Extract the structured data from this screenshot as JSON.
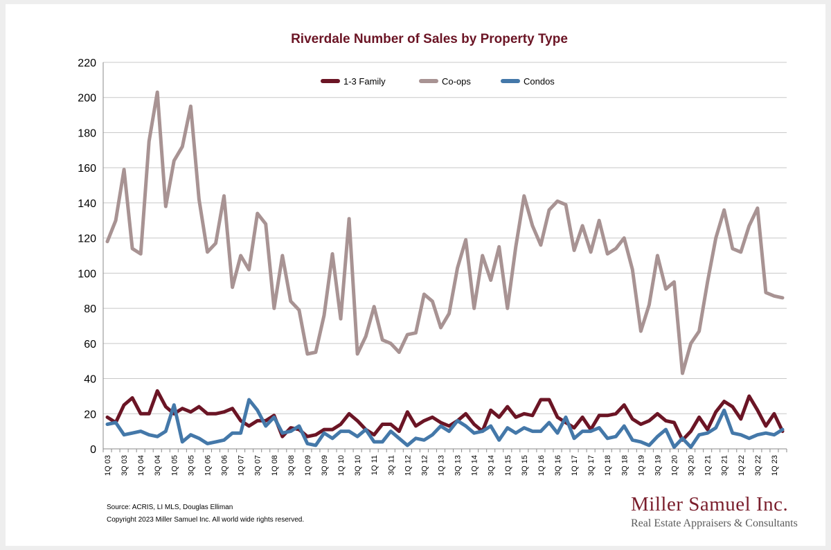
{
  "chart_data": {
    "type": "line",
    "title": "Riverdale Number of Sales by Property Type",
    "xlabel": "",
    "ylabel": "",
    "ylim": [
      0,
      220
    ],
    "yticks": [
      0,
      20,
      40,
      60,
      80,
      100,
      120,
      140,
      160,
      180,
      200,
      220
    ],
    "grid": true,
    "legend_position": "top-center",
    "categories": [
      "1Q 03",
      "2Q 03",
      "3Q 03",
      "4Q 03",
      "1Q 04",
      "2Q 04",
      "3Q 04",
      "4Q 04",
      "1Q 05",
      "2Q 05",
      "3Q 05",
      "4Q 05",
      "1Q 06",
      "2Q 06",
      "3Q 06",
      "4Q 06",
      "1Q 07",
      "2Q 07",
      "3Q 07",
      "4Q 07",
      "1Q 08",
      "2Q 08",
      "3Q 08",
      "4Q 08",
      "1Q 09",
      "2Q 09",
      "3Q 09",
      "4Q 09",
      "1Q 10",
      "2Q 10",
      "3Q 10",
      "4Q 10",
      "1Q 11",
      "2Q 11",
      "3Q 11",
      "4Q 11",
      "1Q 12",
      "2Q 12",
      "3Q 12",
      "4Q 12",
      "1Q 13",
      "2Q 13",
      "3Q 13",
      "4Q 13",
      "1Q 14",
      "2Q 14",
      "3Q 14",
      "4Q 14",
      "1Q 15",
      "2Q 15",
      "3Q 15",
      "4Q 15",
      "1Q 16",
      "2Q 16",
      "3Q 16",
      "4Q 16",
      "1Q 17",
      "2Q 17",
      "3Q 17",
      "4Q 17",
      "1Q 18",
      "2Q 18",
      "3Q 18",
      "4Q 18",
      "1Q 19",
      "2Q 19",
      "3Q 19",
      "4Q 19",
      "1Q 20",
      "2Q 20",
      "3Q 20",
      "4Q 20",
      "1Q 21",
      "2Q 21",
      "3Q 21",
      "4Q 21",
      "1Q 22",
      "2Q 22",
      "3Q 22",
      "4Q 22",
      "1Q 23",
      "2Q 23"
    ],
    "tick_labels": [
      "1Q 03",
      "3Q 03",
      "1Q 04",
      "3Q 04",
      "1Q 05",
      "3Q 05",
      "1Q 06",
      "3Q 06",
      "1Q 07",
      "3Q 07",
      "1Q 08",
      "3Q 08",
      "1Q 09",
      "3Q 09",
      "1Q 10",
      "3Q 10",
      "1Q 11",
      "3Q 11",
      "1Q 12",
      "3Q 12",
      "1Q 13",
      "3Q 13",
      "1Q 14",
      "3Q 14",
      "1Q 15",
      "3Q 15",
      "1Q 16",
      "3Q 16",
      "1Q 17",
      "3Q 17",
      "1Q 18",
      "3Q 18",
      "1Q 19",
      "3Q 19",
      "1Q 20",
      "3Q 20",
      "1Q 21",
      "3Q 21",
      "1Q 22",
      "3Q 22",
      "1Q 23"
    ],
    "series": [
      {
        "name": "1-3 Family",
        "color": "#6b1525",
        "values": [
          18,
          15,
          25,
          29,
          20,
          20,
          33,
          24,
          20,
          23,
          21,
          24,
          20,
          20,
          21,
          23,
          16,
          13,
          16,
          16,
          19,
          7,
          12,
          11,
          7,
          8,
          11,
          11,
          14,
          20,
          16,
          11,
          8,
          14,
          14,
          10,
          21,
          13,
          16,
          18,
          15,
          13,
          16,
          20,
          14,
          10,
          22,
          18,
          24,
          18,
          20,
          19,
          28,
          28,
          18,
          15,
          12,
          18,
          11,
          19,
          19,
          20,
          25,
          17,
          14,
          16,
          20,
          16,
          15,
          5,
          10,
          18,
          11,
          21,
          27,
          24,
          17,
          30,
          22,
          13,
          20,
          10
        ]
      },
      {
        "name": "Co-ops",
        "color": "#a89393",
        "values": [
          118,
          130,
          159,
          114,
          111,
          175,
          203,
          138,
          164,
          172,
          195,
          142,
          112,
          117,
          144,
          92,
          110,
          102,
          134,
          128,
          80,
          110,
          84,
          79,
          54,
          55,
          76,
          111,
          74,
          131,
          54,
          64,
          81,
          62,
          60,
          55,
          65,
          66,
          88,
          84,
          69,
          77,
          103,
          119,
          80,
          110,
          96,
          115,
          80,
          115,
          144,
          127,
          116,
          136,
          141,
          139,
          113,
          127,
          112,
          130,
          111,
          114,
          120,
          102,
          67,
          82,
          110,
          91,
          95,
          43,
          60,
          67,
          95,
          120,
          136,
          114,
          112,
          127,
          137,
          89,
          87,
          86
        ]
      },
      {
        "name": "Condos",
        "color": "#4478a9",
        "values": [
          14,
          15,
          8,
          9,
          10,
          8,
          7,
          10,
          25,
          4,
          8,
          6,
          3,
          4,
          5,
          9,
          9,
          28,
          22,
          13,
          18,
          9,
          10,
          13,
          3,
          2,
          9,
          6,
          10,
          10,
          7,
          11,
          4,
          4,
          10,
          6,
          2,
          6,
          5,
          8,
          13,
          10,
          16,
          13,
          9,
          10,
          13,
          5,
          12,
          9,
          12,
          10,
          10,
          15,
          9,
          18,
          6,
          10,
          10,
          12,
          6,
          7,
          13,
          5,
          4,
          2,
          7,
          11,
          1,
          6,
          1,
          8,
          9,
          12,
          22,
          9,
          8,
          6,
          8,
          9,
          8,
          11
        ]
      }
    ]
  },
  "footer": {
    "source": "Source: ACRIS, LI MLS, Douglas Elliman",
    "copyright": "Copyright 2023 Miller Samuel Inc.  All world wide rights reserved."
  },
  "brand": {
    "name": "Miller Samuel Inc.",
    "tagline": "Real Estate Appraisers & Consultants"
  }
}
